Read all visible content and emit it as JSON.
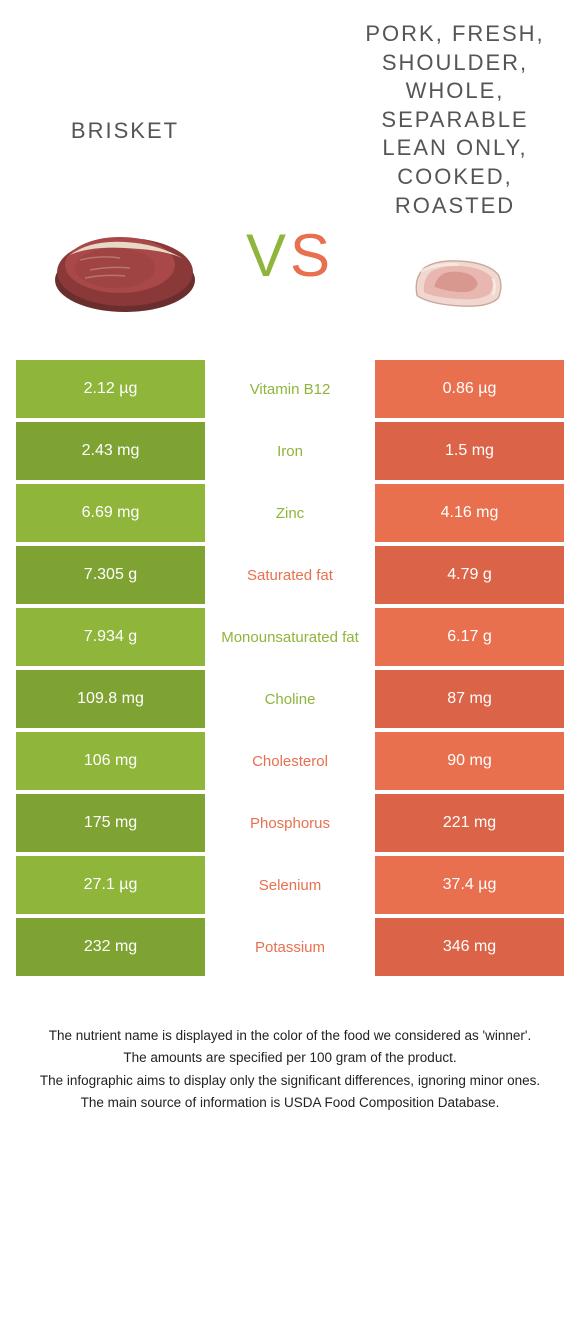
{
  "colors": {
    "left": "#8fb53b",
    "right": "#e8704f",
    "left_dark": "#7fa332",
    "right_dark": "#db6347"
  },
  "header": {
    "left_title": "BRISKET",
    "right_title": "PORK, FRESH, SHOULDER, WHOLE, SEPARABLE LEAN ONLY, COOKED, ROASTED",
    "vs_v": "V",
    "vs_s": "S"
  },
  "rows": [
    {
      "nutrient": "Vitamin B12",
      "left": "2.12 µg",
      "right": "0.86 µg",
      "winner": "left"
    },
    {
      "nutrient": "Iron",
      "left": "2.43 mg",
      "right": "1.5 mg",
      "winner": "left"
    },
    {
      "nutrient": "Zinc",
      "left": "6.69 mg",
      "right": "4.16 mg",
      "winner": "left"
    },
    {
      "nutrient": "Saturated fat",
      "left": "7.305 g",
      "right": "4.79 g",
      "winner": "right"
    },
    {
      "nutrient": "Monounsaturated fat",
      "left": "7.934 g",
      "right": "6.17 g",
      "winner": "left"
    },
    {
      "nutrient": "Choline",
      "left": "109.8 mg",
      "right": "87 mg",
      "winner": "left"
    },
    {
      "nutrient": "Cholesterol",
      "left": "106 mg",
      "right": "90 mg",
      "winner": "right"
    },
    {
      "nutrient": "Phosphorus",
      "left": "175 mg",
      "right": "221 mg",
      "winner": "right"
    },
    {
      "nutrient": "Selenium",
      "left": "27.1 µg",
      "right": "37.4 µg",
      "winner": "right"
    },
    {
      "nutrient": "Potassium",
      "left": "232 mg",
      "right": "346 mg",
      "winner": "right"
    }
  ],
  "footer": [
    "The nutrient name is displayed in the color of the food we considered as 'winner'.",
    "The amounts are specified per 100 gram of the product.",
    "The infographic aims to display only the significant differences, ignoring minor ones.",
    "The main source of information is USDA Food Composition Database."
  ]
}
